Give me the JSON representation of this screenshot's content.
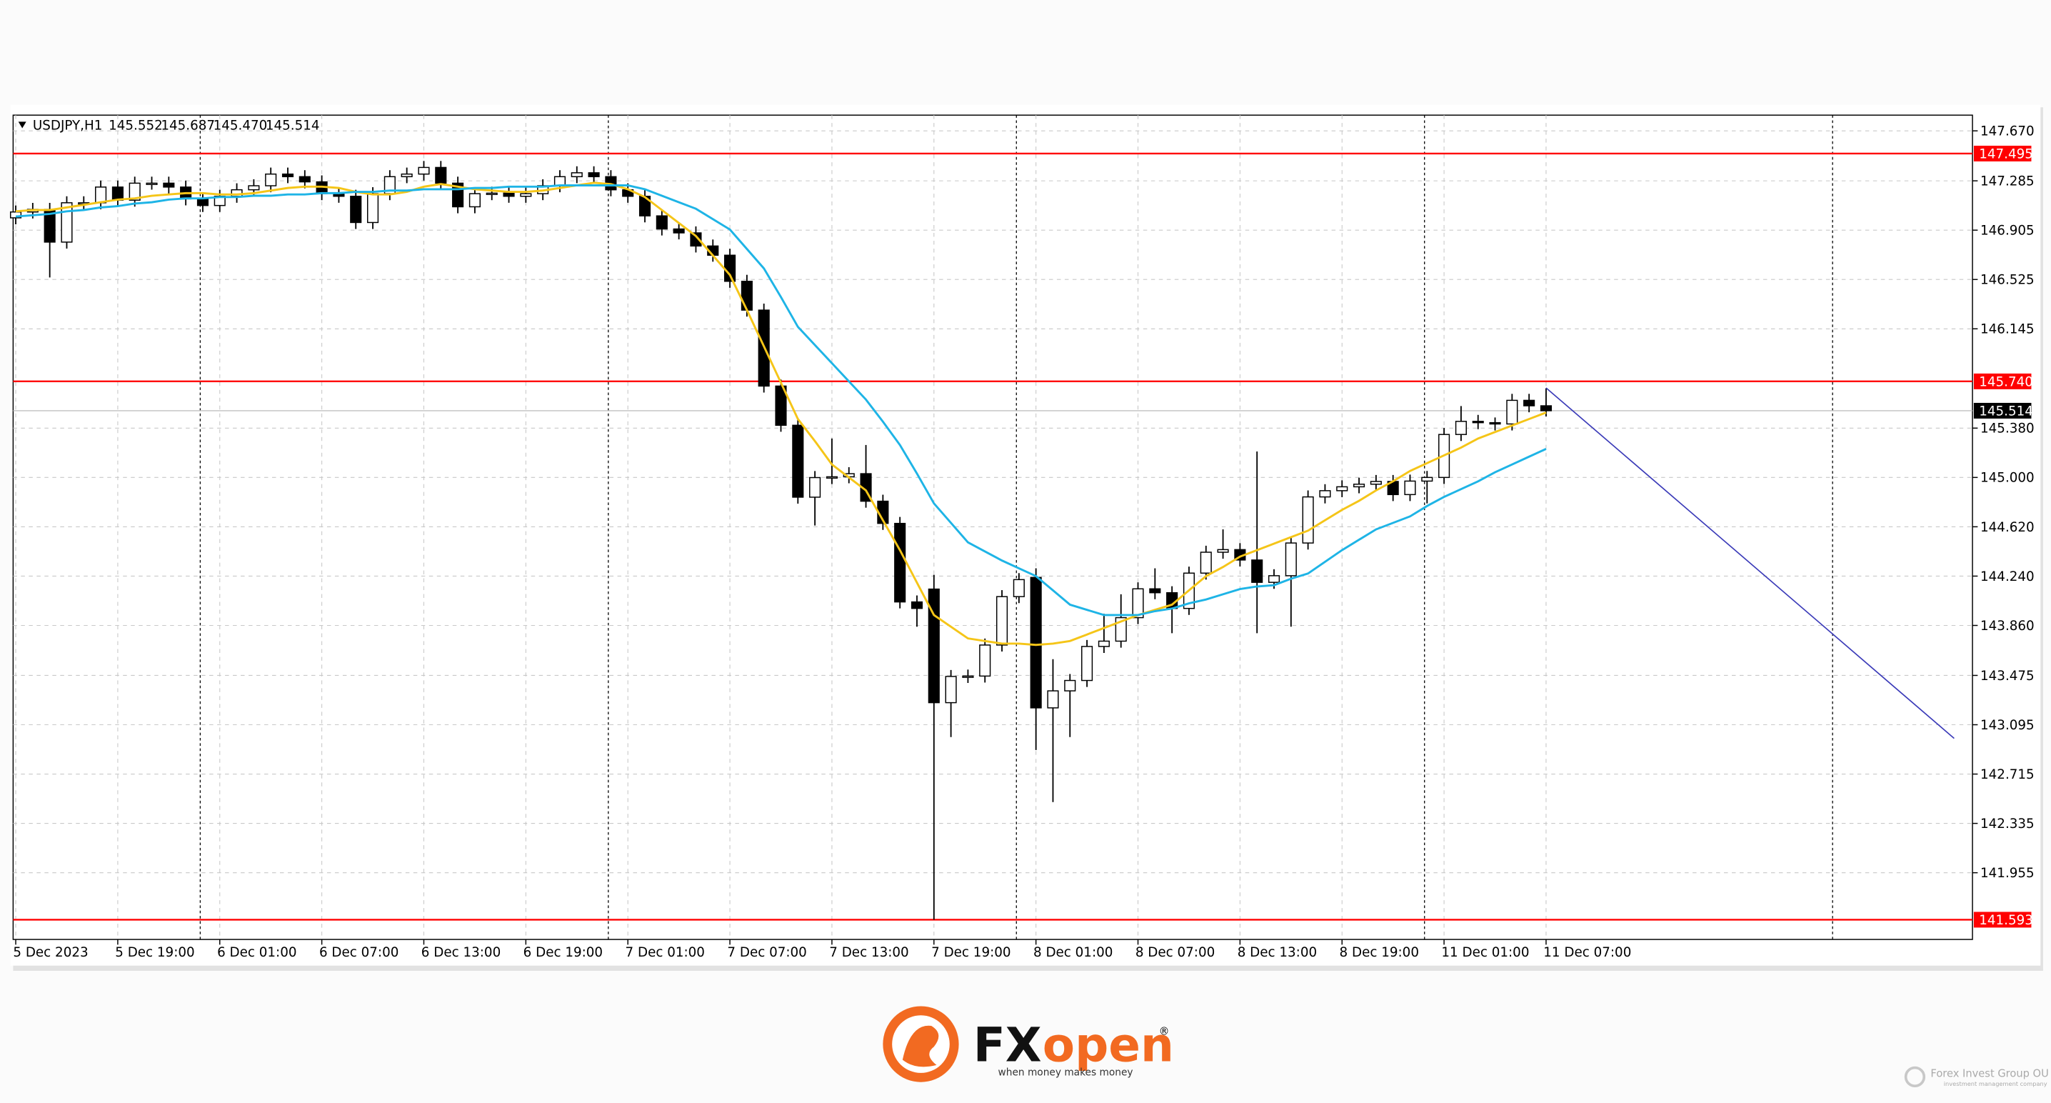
{
  "chart_data": {
    "type": "candlestick",
    "header": {
      "symbol": "USDJPY,H1",
      "ohlc": [
        "145.552",
        "145.687",
        "145.470",
        "145.514"
      ]
    },
    "categories": [
      "5 Dec 2023",
      null,
      null,
      null,
      null,
      null,
      "5 Dec 19:00",
      null,
      null,
      null,
      null,
      null,
      "6 Dec 01:00",
      null,
      null,
      null,
      null,
      null,
      "6 Dec 07:00",
      null,
      null,
      null,
      null,
      null,
      "6 Dec 13:00",
      null,
      null,
      null,
      null,
      null,
      "6 Dec 19:00",
      null,
      null,
      null,
      null,
      null,
      "7 Dec 01:00",
      null,
      null,
      null,
      null,
      null,
      "7 Dec 07:00",
      null,
      null,
      null,
      null,
      null,
      "7 Dec 13:00",
      null,
      null,
      null,
      null,
      null,
      "7 Dec 19:00",
      null,
      null,
      null,
      null,
      null,
      "8 Dec 01:00",
      null,
      null,
      null,
      null,
      null,
      "8 Dec 07:00",
      null,
      null,
      null,
      null,
      null,
      "8 Dec 13:00",
      null,
      null,
      null,
      null,
      null,
      "8 Dec 19:00",
      null,
      null,
      null,
      null,
      null,
      "11 Dec 01:00",
      null,
      null,
      null,
      null,
      null,
      "11 Dec 07:00"
    ],
    "open": [
      147.0,
      147.045,
      147.065,
      146.813,
      147.116,
      147.116,
      147.237,
      147.136,
      147.267,
      147.267,
      147.237,
      147.146,
      147.095,
      147.166,
      147.216,
      147.247,
      147.337,
      147.317,
      147.277,
      147.186,
      147.166,
      146.964,
      147.186,
      147.317,
      147.337,
      147.388,
      147.267,
      147.085,
      147.186,
      147.19,
      147.166,
      147.186,
      147.247,
      147.317,
      147.347,
      147.317,
      147.216,
      147.166,
      147.015,
      146.914,
      146.884,
      146.783,
      146.712,
      146.511,
      146.289,
      145.704,
      145.402,
      144.848,
      144.999,
      145.005,
      145.029,
      144.817,
      144.646,
      144.041,
      144.14,
      143.265,
      143.467,
      143.47,
      143.709,
      144.082,
      144.23,
      143.225,
      143.356,
      143.436,
      143.698,
      143.739,
      143.92,
      144.142,
      144.112,
      143.991,
      144.263,
      144.424,
      144.444,
      144.364,
      144.192,
      144.243,
      144.495,
      144.85,
      144.898,
      144.928,
      144.948,
      144.969,
      144.868,
      144.972,
      145.0,
      145.331,
      145.432,
      145.422,
      145.412,
      145.594,
      145.552
    ],
    "high": [
      147.095,
      147.115,
      147.115,
      147.166,
      147.166,
      147.287,
      147.287,
      147.317,
      147.317,
      147.317,
      147.287,
      147.196,
      147.216,
      147.266,
      147.297,
      147.387,
      147.387,
      147.367,
      147.327,
      147.236,
      147.216,
      147.236,
      147.367,
      147.387,
      147.438,
      147.438,
      147.317,
      147.236,
      147.24,
      147.24,
      147.236,
      147.297,
      147.367,
      147.397,
      147.397,
      147.367,
      147.266,
      147.216,
      147.065,
      146.964,
      146.934,
      146.833,
      146.762,
      146.561,
      146.339,
      145.754,
      145.452,
      145.049,
      145.3,
      145.079,
      145.25,
      144.867,
      144.696,
      144.091,
      144.25,
      143.517,
      143.52,
      143.759,
      144.132,
      144.263,
      144.3,
      143.6,
      143.486,
      143.748,
      143.95,
      144.1,
      144.192,
      144.3,
      144.162,
      144.313,
      144.474,
      144.6,
      144.494,
      145.2,
      144.293,
      144.545,
      144.9,
      144.948,
      144.978,
      144.998,
      145.019,
      145.019,
      145.022,
      145.05,
      145.381,
      145.55,
      145.482,
      145.462,
      145.644,
      145.644,
      145.687
    ],
    "low": [
      146.95,
      146.995,
      146.541,
      146.763,
      147.066,
      147.066,
      147.086,
      147.086,
      147.217,
      147.187,
      147.096,
      147.045,
      147.045,
      147.116,
      147.166,
      147.197,
      147.267,
      147.227,
      147.136,
      147.116,
      146.914,
      146.914,
      147.136,
      147.267,
      147.287,
      147.217,
      147.035,
      147.035,
      147.136,
      147.116,
      147.116,
      147.136,
      147.197,
      147.267,
      147.267,
      147.166,
      147.116,
      146.965,
      146.864,
      146.834,
      146.733,
      146.662,
      146.461,
      146.239,
      145.654,
      145.352,
      144.798,
      144.63,
      144.949,
      144.955,
      144.767,
      144.596,
      143.991,
      143.85,
      141.593,
      143.0,
      143.417,
      143.42,
      143.659,
      144.032,
      142.9,
      142.499,
      143.0,
      143.386,
      143.648,
      143.689,
      143.87,
      144.062,
      143.8,
      143.941,
      144.213,
      144.374,
      144.314,
      143.8,
      144.142,
      143.85,
      144.445,
      144.8,
      144.848,
      144.878,
      144.898,
      144.818,
      144.818,
      144.8,
      144.95,
      145.281,
      145.372,
      145.362,
      145.362,
      145.502,
      145.47
    ],
    "close": [
      147.045,
      147.065,
      146.813,
      147.116,
      147.116,
      147.237,
      147.136,
      147.267,
      147.267,
      147.237,
      147.146,
      147.095,
      147.166,
      147.216,
      147.247,
      147.337,
      147.317,
      147.277,
      147.186,
      147.166,
      146.964,
      147.186,
      147.317,
      147.337,
      147.388,
      147.267,
      147.085,
      147.186,
      147.19,
      147.166,
      147.186,
      147.247,
      147.317,
      147.347,
      147.317,
      147.216,
      147.166,
      147.015,
      146.914,
      146.884,
      146.783,
      146.712,
      146.511,
      146.289,
      145.704,
      145.402,
      144.848,
      144.999,
      145.005,
      145.029,
      144.817,
      144.646,
      144.041,
      143.991,
      143.265,
      143.467,
      143.47,
      143.709,
      144.082,
      144.213,
      143.225,
      143.356,
      143.436,
      143.698,
      143.739,
      143.92,
      144.142,
      144.112,
      143.991,
      144.263,
      144.424,
      144.444,
      144.364,
      144.192,
      144.243,
      144.495,
      144.85,
      144.898,
      144.928,
      144.948,
      144.969,
      144.868,
      144.972,
      145.0,
      145.331,
      145.432,
      145.422,
      145.412,
      145.594,
      145.552,
      145.514
    ],
    "up_color": "#ffffff",
    "down_color": "#000000",
    "lines": [
      {
        "color": "#f5c518",
        "values": [
          147.05,
          147.06,
          147.06,
          147.08,
          147.1,
          147.12,
          147.14,
          147.15,
          147.17,
          147.18,
          147.19,
          147.19,
          147.18,
          147.18,
          147.19,
          147.21,
          147.23,
          147.24,
          147.24,
          147.23,
          147.2,
          147.18,
          147.18,
          147.2,
          147.24,
          147.26,
          147.24,
          147.22,
          147.21,
          147.2,
          147.2,
          147.21,
          147.23,
          147.25,
          147.27,
          147.26,
          147.22,
          147.16,
          147.06,
          146.96,
          146.86,
          146.71,
          146.56,
          146.29,
          146.01,
          145.73,
          145.45,
          145.28,
          145.1,
          145.0,
          144.9,
          144.67,
          144.44,
          144.19,
          143.94,
          143.85,
          143.76,
          143.74,
          143.72,
          143.72,
          143.71,
          143.72,
          143.74,
          143.79,
          143.84,
          143.89,
          143.94,
          143.98,
          144.02,
          144.13,
          144.24,
          144.31,
          144.39,
          144.44,
          144.49,
          144.54,
          144.59,
          144.67,
          144.75,
          144.82,
          144.9,
          144.97,
          145.05,
          145.11,
          145.17,
          145.23,
          145.3,
          145.35,
          145.4,
          145.45,
          145.5
        ]
      },
      {
        "color": "#1eb4e6",
        "values": [
          147.01,
          147.02,
          147.03,
          147.05,
          147.06,
          147.08,
          147.09,
          147.11,
          147.12,
          147.14,
          147.15,
          147.15,
          147.16,
          147.16,
          147.17,
          147.17,
          147.18,
          147.18,
          147.19,
          147.19,
          147.2,
          147.2,
          147.21,
          147.21,
          147.22,
          147.22,
          147.22,
          147.23,
          147.23,
          147.24,
          147.24,
          147.24,
          147.25,
          147.25,
          147.25,
          147.25,
          147.25,
          147.22,
          147.17,
          147.12,
          147.07,
          146.99,
          146.91,
          146.76,
          146.61,
          146.39,
          146.16,
          146.02,
          145.88,
          145.74,
          145.6,
          145.43,
          145.25,
          145.03,
          144.8,
          144.65,
          144.5,
          144.43,
          144.36,
          144.3,
          144.24,
          144.13,
          144.02,
          143.98,
          143.94,
          143.94,
          143.94,
          143.97,
          143.99,
          144.03,
          144.06,
          144.1,
          144.14,
          144.16,
          144.17,
          144.22,
          144.26,
          144.35,
          144.44,
          144.52,
          144.6,
          144.65,
          144.7,
          144.78,
          144.85,
          144.91,
          144.97,
          145.04,
          145.1,
          145.16,
          145.22
        ]
      }
    ],
    "hlines": [
      {
        "value": 147.495,
        "color": "#ff0000"
      },
      {
        "value": {
          "value": 145.74,
          "label": "145.740"
        },
        "color": "#ff0000"
      },
      {
        "value": 141.593,
        "color": "#ff0000"
      }
    ],
    "trendline": {
      "x": [
        90,
        114
      ],
      "values": [
        145.69,
        142.99
      ],
      "color": "#3a3ab8"
    },
    "ylim": [
      141.441,
      147.791
    ],
    "yticks": [
      {
        "value": 147.67,
        "label": "147.670"
      },
      147.285,
      146.905,
      146.525,
      146.145,
      {
        "value": 145.38,
        "label": "145.380"
      },
      {
        "value": 145,
        "label": "145.000"
      },
      {
        "value": 144.62,
        "label": "144.620"
      },
      {
        "value": 144.24,
        "label": "144.240"
      },
      {
        "value": 143.86,
        "label": "143.860"
      },
      143.475,
      143.095,
      142.715,
      142.335,
      141.955
    ],
    "grid": true
  },
  "footer": {
    "brand_fx": "FX",
    "brand_open": "open",
    "registered": "®",
    "slogan": "when money makes money",
    "company": "Forex Invest Group OU",
    "company_sub": "investment management company"
  }
}
